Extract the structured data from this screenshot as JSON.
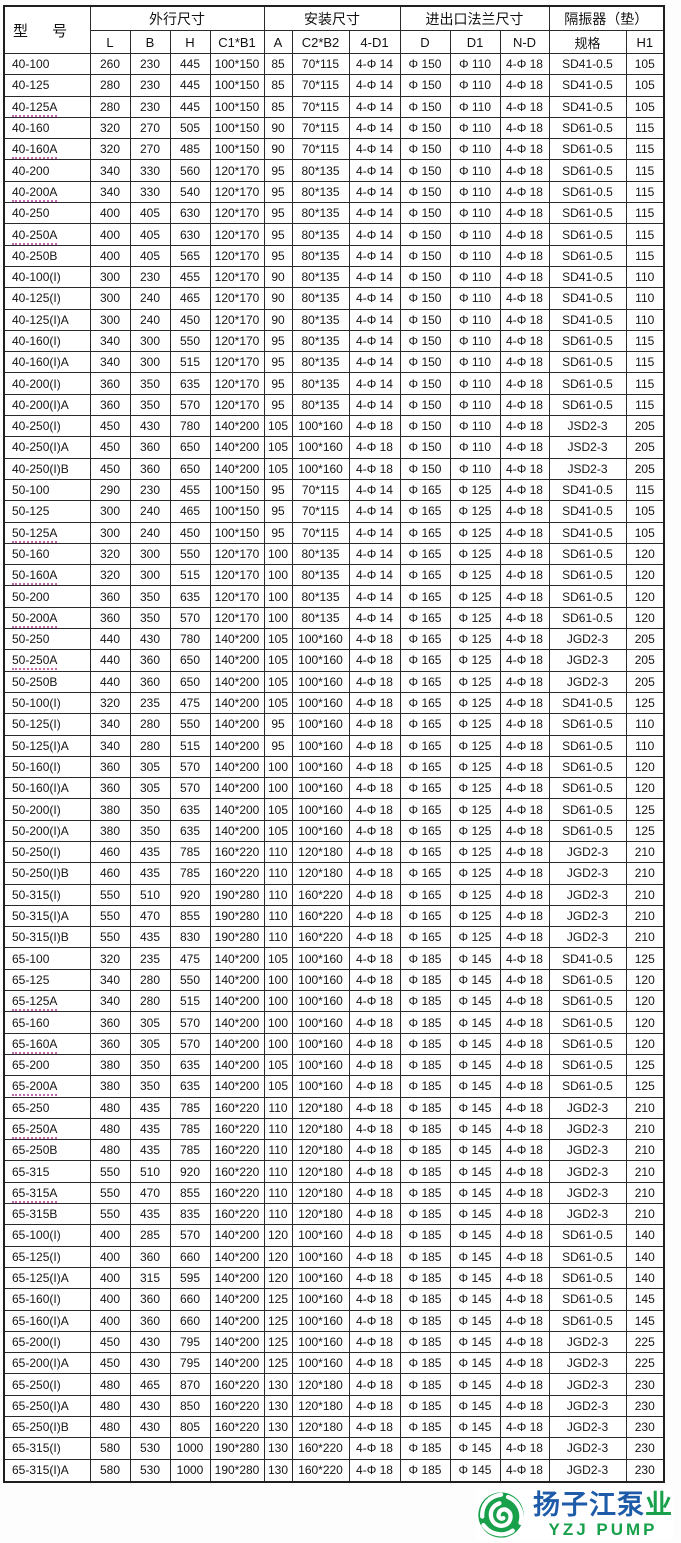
{
  "table": {
    "model_header": "型 号",
    "groups": [
      {
        "label": "外行尺寸",
        "span": 4
      },
      {
        "label": "安装尺寸",
        "span": 3
      },
      {
        "label": "进出口法兰尺寸",
        "span": 3
      },
      {
        "label": "隔振器（垫）",
        "span": 2
      }
    ],
    "sub_headers": [
      "L",
      "B",
      "H",
      "C1*B1",
      "A",
      "C2*B2",
      "4-D1",
      "D",
      "D1",
      "N-D",
      "规格",
      "H1"
    ],
    "underlined_models": [
      "40-125A",
      "40-160A",
      "40-200A",
      "40-250A",
      "50-125A",
      "50-160A",
      "50-200A",
      "50-250A",
      "65-125A",
      "65-160A",
      "65-200A",
      "65-250A",
      "65-315A"
    ],
    "rows": [
      [
        "40-100",
        "260",
        "230",
        "445",
        "100*150",
        "85",
        "70*115",
        "4-Φ 14",
        "Φ 150",
        "Φ 110",
        "4-Φ 18",
        "SD41-0.5",
        "105"
      ],
      [
        "40-125",
        "280",
        "230",
        "445",
        "100*150",
        "85",
        "70*115",
        "4-Φ 14",
        "Φ 150",
        "Φ 110",
        "4-Φ 18",
        "SD41-0.5",
        "105"
      ],
      [
        "40-125A",
        "280",
        "230",
        "445",
        "100*150",
        "85",
        "70*115",
        "4-Φ 14",
        "Φ 150",
        "Φ 110",
        "4-Φ 18",
        "SD41-0.5",
        "105"
      ],
      [
        "40-160",
        "320",
        "270",
        "505",
        "100*150",
        "90",
        "70*115",
        "4-Φ 14",
        "Φ 150",
        "Φ 110",
        "4-Φ 18",
        "SD61-0.5",
        "115"
      ],
      [
        "40-160A",
        "320",
        "270",
        "485",
        "100*150",
        "90",
        "70*115",
        "4-Φ 14",
        "Φ 150",
        "Φ 110",
        "4-Φ 18",
        "SD61-0.5",
        "115"
      ],
      [
        "40-200",
        "340",
        "330",
        "560",
        "120*170",
        "95",
        "80*135",
        "4-Φ 14",
        "Φ 150",
        "Φ 110",
        "4-Φ 18",
        "SD61-0.5",
        "115"
      ],
      [
        "40-200A",
        "340",
        "330",
        "540",
        "120*170",
        "95",
        "80*135",
        "4-Φ 14",
        "Φ 150",
        "Φ 110",
        "4-Φ 18",
        "SD61-0.5",
        "115"
      ],
      [
        "40-250",
        "400",
        "405",
        "630",
        "120*170",
        "95",
        "80*135",
        "4-Φ 14",
        "Φ 150",
        "Φ 110",
        "4-Φ 18",
        "SD61-0.5",
        "115"
      ],
      [
        "40-250A",
        "400",
        "405",
        "630",
        "120*170",
        "95",
        "80*135",
        "4-Φ 14",
        "Φ 150",
        "Φ 110",
        "4-Φ 18",
        "SD61-0.5",
        "115"
      ],
      [
        "40-250B",
        "400",
        "405",
        "565",
        "120*170",
        "95",
        "80*135",
        "4-Φ 14",
        "Φ 150",
        "Φ 110",
        "4-Φ 18",
        "SD61-0.5",
        "115"
      ],
      [
        "40-100(I)",
        "300",
        "230",
        "455",
        "120*170",
        "90",
        "80*135",
        "4-Φ 14",
        "Φ 150",
        "Φ 110",
        "4-Φ 18",
        "SD41-0.5",
        "110"
      ],
      [
        "40-125(I)",
        "300",
        "240",
        "465",
        "120*170",
        "90",
        "80*135",
        "4-Φ 14",
        "Φ 150",
        "Φ 110",
        "4-Φ 18",
        "SD41-0.5",
        "110"
      ],
      [
        "40-125(I)A",
        "300",
        "240",
        "450",
        "120*170",
        "90",
        "80*135",
        "4-Φ 14",
        "Φ 150",
        "Φ 110",
        "4-Φ 18",
        "SD41-0.5",
        "110"
      ],
      [
        "40-160(I)",
        "340",
        "300",
        "550",
        "120*170",
        "95",
        "80*135",
        "4-Φ 14",
        "Φ 150",
        "Φ 110",
        "4-Φ 18",
        "SD61-0.5",
        "115"
      ],
      [
        "40-160(I)A",
        "340",
        "300",
        "515",
        "120*170",
        "95",
        "80*135",
        "4-Φ 14",
        "Φ 150",
        "Φ 110",
        "4-Φ 18",
        "SD61-0.5",
        "115"
      ],
      [
        "40-200(I)",
        "360",
        "350",
        "635",
        "120*170",
        "95",
        "80*135",
        "4-Φ 14",
        "Φ 150",
        "Φ 110",
        "4-Φ 18",
        "SD61-0.5",
        "115"
      ],
      [
        "40-200(I)A",
        "360",
        "350",
        "570",
        "120*170",
        "95",
        "80*135",
        "4-Φ 14",
        "Φ 150",
        "Φ 110",
        "4-Φ 18",
        "SD61-0.5",
        "115"
      ],
      [
        "40-250(I)",
        "450",
        "430",
        "780",
        "140*200",
        "105",
        "100*160",
        "4-Φ 18",
        "Φ 150",
        "Φ 110",
        "4-Φ 18",
        "JSD2-3",
        "205"
      ],
      [
        "40-250(I)A",
        "450",
        "360",
        "650",
        "140*200",
        "105",
        "100*160",
        "4-Φ 18",
        "Φ 150",
        "Φ 110",
        "4-Φ 18",
        "JSD2-3",
        "205"
      ],
      [
        "40-250(I)B",
        "450",
        "360",
        "650",
        "140*200",
        "105",
        "100*160",
        "4-Φ 18",
        "Φ 150",
        "Φ 110",
        "4-Φ 18",
        "JSD2-3",
        "205"
      ],
      [
        "50-100",
        "290",
        "230",
        "455",
        "100*150",
        "95",
        "70*115",
        "4-Φ 14",
        "Φ 165",
        "Φ 125",
        "4-Φ 18",
        "SD41-0.5",
        "115"
      ],
      [
        "50-125",
        "300",
        "240",
        "465",
        "100*150",
        "95",
        "70*115",
        "4-Φ 14",
        "Φ 165",
        "Φ 125",
        "4-Φ 18",
        "SD41-0.5",
        "105"
      ],
      [
        "50-125A",
        "300",
        "240",
        "450",
        "100*150",
        "95",
        "70*115",
        "4-Φ 14",
        "Φ 165",
        "Φ 125",
        "4-Φ 18",
        "SD41-0.5",
        "105"
      ],
      [
        "50-160",
        "320",
        "300",
        "550",
        "120*170",
        "100",
        "80*135",
        "4-Φ 14",
        "Φ 165",
        "Φ 125",
        "4-Φ 18",
        "SD61-0.5",
        "120"
      ],
      [
        "50-160A",
        "320",
        "300",
        "515",
        "120*170",
        "100",
        "80*135",
        "4-Φ 14",
        "Φ 165",
        "Φ 125",
        "4-Φ 18",
        "SD61-0.5",
        "120"
      ],
      [
        "50-200",
        "360",
        "350",
        "635",
        "120*170",
        "100",
        "80*135",
        "4-Φ 14",
        "Φ 165",
        "Φ 125",
        "4-Φ 18",
        "SD61-0.5",
        "120"
      ],
      [
        "50-200A",
        "360",
        "350",
        "570",
        "120*170",
        "100",
        "80*135",
        "4-Φ 14",
        "Φ 165",
        "Φ 125",
        "4-Φ 18",
        "SD61-0.5",
        "120"
      ],
      [
        "50-250",
        "440",
        "430",
        "780",
        "140*200",
        "105",
        "100*160",
        "4-Φ 18",
        "Φ 165",
        "Φ 125",
        "4-Φ 18",
        "JGD2-3",
        "205"
      ],
      [
        "50-250A",
        "440",
        "360",
        "650",
        "140*200",
        "105",
        "100*160",
        "4-Φ 18",
        "Φ 165",
        "Φ 125",
        "4-Φ 18",
        "JGD2-3",
        "205"
      ],
      [
        "50-250B",
        "440",
        "360",
        "650",
        "140*200",
        "105",
        "100*160",
        "4-Φ 18",
        "Φ 165",
        "Φ 125",
        "4-Φ 18",
        "JGD2-3",
        "205"
      ],
      [
        "50-100(I)",
        "320",
        "235",
        "475",
        "140*200",
        "105",
        "100*160",
        "4-Φ 18",
        "Φ 165",
        "Φ 125",
        "4-Φ 18",
        "SD41-0.5",
        "125"
      ],
      [
        "50-125(I)",
        "340",
        "280",
        "550",
        "140*200",
        "95",
        "100*160",
        "4-Φ 18",
        "Φ 165",
        "Φ 125",
        "4-Φ 18",
        "SD61-0.5",
        "110"
      ],
      [
        "50-125(I)A",
        "340",
        "280",
        "515",
        "140*200",
        "95",
        "100*160",
        "4-Φ 18",
        "Φ 165",
        "Φ 125",
        "4-Φ 18",
        "SD61-0.5",
        "110"
      ],
      [
        "50-160(I)",
        "360",
        "305",
        "570",
        "140*200",
        "100",
        "100*160",
        "4-Φ 18",
        "Φ 165",
        "Φ 125",
        "4-Φ 18",
        "SD61-0.5",
        "120"
      ],
      [
        "50-160(I)A",
        "360",
        "305",
        "570",
        "140*200",
        "100",
        "100*160",
        "4-Φ 18",
        "Φ 165",
        "Φ 125",
        "4-Φ 18",
        "SD61-0.5",
        "120"
      ],
      [
        "50-200(I)",
        "380",
        "350",
        "635",
        "140*200",
        "105",
        "100*160",
        "4-Φ 18",
        "Φ 165",
        "Φ 125",
        "4-Φ 18",
        "SD61-0.5",
        "125"
      ],
      [
        "50-200(I)A",
        "380",
        "350",
        "635",
        "140*200",
        "105",
        "100*160",
        "4-Φ 18",
        "Φ 165",
        "Φ 125",
        "4-Φ 18",
        "SD61-0.5",
        "125"
      ],
      [
        "50-250(I)",
        "460",
        "435",
        "785",
        "160*220",
        "110",
        "120*180",
        "4-Φ 18",
        "Φ 165",
        "Φ 125",
        "4-Φ 18",
        "JGD2-3",
        "210"
      ],
      [
        "50-250(I)B",
        "460",
        "435",
        "785",
        "160*220",
        "110",
        "120*180",
        "4-Φ 18",
        "Φ 165",
        "Φ 125",
        "4-Φ 18",
        "JGD2-3",
        "210"
      ],
      [
        "50-315(I)",
        "550",
        "510",
        "920",
        "190*280",
        "110",
        "160*220",
        "4-Φ 18",
        "Φ 165",
        "Φ 125",
        "4-Φ 18",
        "JGD2-3",
        "210"
      ],
      [
        "50-315(I)A",
        "550",
        "470",
        "855",
        "190*280",
        "110",
        "160*220",
        "4-Φ 18",
        "Φ 165",
        "Φ 125",
        "4-Φ 18",
        "JGD2-3",
        "210"
      ],
      [
        "50-315(I)B",
        "550",
        "435",
        "830",
        "190*280",
        "110",
        "160*220",
        "4-Φ 18",
        "Φ 165",
        "Φ 125",
        "4-Φ 18",
        "JGD2-3",
        "210"
      ],
      [
        "65-100",
        "320",
        "235",
        "475",
        "140*200",
        "105",
        "100*160",
        "4-Φ 18",
        "Φ 185",
        "Φ 145",
        "4-Φ 18",
        "SD41-0.5",
        "125"
      ],
      [
        "65-125",
        "340",
        "280",
        "550",
        "140*200",
        "100",
        "100*160",
        "4-Φ 18",
        "Φ 185",
        "Φ 145",
        "4-Φ 18",
        "SD61-0.5",
        "120"
      ],
      [
        "65-125A",
        "340",
        "280",
        "515",
        "140*200",
        "100",
        "100*160",
        "4-Φ 18",
        "Φ 185",
        "Φ 145",
        "4-Φ 18",
        "SD61-0.5",
        "120"
      ],
      [
        "65-160",
        "360",
        "305",
        "570",
        "140*200",
        "100",
        "100*160",
        "4-Φ 18",
        "Φ 185",
        "Φ 145",
        "4-Φ 18",
        "SD61-0.5",
        "120"
      ],
      [
        "65-160A",
        "360",
        "305",
        "570",
        "140*200",
        "100",
        "100*160",
        "4-Φ 18",
        "Φ 185",
        "Φ 145",
        "4-Φ 18",
        "SD61-0.5",
        "120"
      ],
      [
        "65-200",
        "380",
        "350",
        "635",
        "140*200",
        "105",
        "100*160",
        "4-Φ 18",
        "Φ 185",
        "Φ 145",
        "4-Φ 18",
        "SD61-0.5",
        "125"
      ],
      [
        "65-200A",
        "380",
        "350",
        "635",
        "140*200",
        "105",
        "100*160",
        "4-Φ 18",
        "Φ 185",
        "Φ 145",
        "4-Φ 18",
        "SD61-0.5",
        "125"
      ],
      [
        "65-250",
        "480",
        "435",
        "785",
        "160*220",
        "110",
        "120*180",
        "4-Φ 18",
        "Φ 185",
        "Φ 145",
        "4-Φ 18",
        "JGD2-3",
        "210"
      ],
      [
        "65-250A",
        "480",
        "435",
        "785",
        "160*220",
        "110",
        "120*180",
        "4-Φ 18",
        "Φ 185",
        "Φ 145",
        "4-Φ 18",
        "JGD2-3",
        "210"
      ],
      [
        "65-250B",
        "480",
        "435",
        "785",
        "160*220",
        "110",
        "120*180",
        "4-Φ 18",
        "Φ 185",
        "Φ 145",
        "4-Φ 18",
        "JGD2-3",
        "210"
      ],
      [
        "65-315",
        "550",
        "510",
        "920",
        "160*220",
        "110",
        "120*180",
        "4-Φ 18",
        "Φ 185",
        "Φ 145",
        "4-Φ 18",
        "JGD2-3",
        "210"
      ],
      [
        "65-315A",
        "550",
        "470",
        "855",
        "160*220",
        "110",
        "120*180",
        "4-Φ 18",
        "Φ 185",
        "Φ 145",
        "4-Φ 18",
        "JGD2-3",
        "210"
      ],
      [
        "65-315B",
        "550",
        "435",
        "835",
        "160*220",
        "110",
        "120*180",
        "4-Φ 18",
        "Φ 185",
        "Φ 145",
        "4-Φ 18",
        "JGD2-3",
        "210"
      ],
      [
        "65-100(I)",
        "400",
        "285",
        "570",
        "140*200",
        "120",
        "100*160",
        "4-Φ 18",
        "Φ 185",
        "Φ 145",
        "4-Φ 18",
        "SD61-0.5",
        "140"
      ],
      [
        "65-125(I)",
        "400",
        "360",
        "660",
        "140*200",
        "120",
        "100*160",
        "4-Φ 18",
        "Φ 185",
        "Φ 145",
        "4-Φ 18",
        "SD61-0.5",
        "140"
      ],
      [
        "65-125(I)A",
        "400",
        "315",
        "595",
        "140*200",
        "120",
        "100*160",
        "4-Φ 18",
        "Φ 185",
        "Φ 145",
        "4-Φ 18",
        "SD61-0.5",
        "140"
      ],
      [
        "65-160(I)",
        "400",
        "360",
        "660",
        "140*200",
        "125",
        "100*160",
        "4-Φ 18",
        "Φ 185",
        "Φ 145",
        "4-Φ 18",
        "SD61-0.5",
        "145"
      ],
      [
        "65-160(I)A",
        "400",
        "360",
        "660",
        "140*200",
        "125",
        "100*160",
        "4-Φ 18",
        "Φ 185",
        "Φ 145",
        "4-Φ 18",
        "SD61-0.5",
        "145"
      ],
      [
        "65-200(I)",
        "450",
        "430",
        "795",
        "140*200",
        "125",
        "100*160",
        "4-Φ 18",
        "Φ 185",
        "Φ 145",
        "4-Φ 18",
        "JGD2-3",
        "225"
      ],
      [
        "65-200(I)A",
        "450",
        "430",
        "795",
        "140*200",
        "125",
        "100*160",
        "4-Φ 18",
        "Φ 185",
        "Φ 145",
        "4-Φ 18",
        "JGD2-3",
        "225"
      ],
      [
        "65-250(I)",
        "480",
        "465",
        "870",
        "160*220",
        "130",
        "120*180",
        "4-Φ 18",
        "Φ 185",
        "Φ 145",
        "4-Φ 18",
        "JGD2-3",
        "230"
      ],
      [
        "65-250(I)A",
        "480",
        "430",
        "850",
        "160*220",
        "130",
        "120*180",
        "4-Φ 18",
        "Φ 185",
        "Φ 145",
        "4-Φ 18",
        "JGD2-3",
        "230"
      ],
      [
        "65-250(I)B",
        "480",
        "430",
        "805",
        "160*220",
        "130",
        "120*180",
        "4-Φ 18",
        "Φ 185",
        "Φ 145",
        "4-Φ 18",
        "JGD2-3",
        "230"
      ],
      [
        "65-315(I)",
        "580",
        "530",
        "1000",
        "190*280",
        "130",
        "160*220",
        "4-Φ 18",
        "Φ 185",
        "Φ 145",
        "4-Φ 18",
        "JGD2-3",
        "230"
      ],
      [
        "65-315(I)A",
        "580",
        "530",
        "1000",
        "190*280",
        "130",
        "160*220",
        "4-Φ 18",
        "Φ 185",
        "Φ 145",
        "4-Φ 18",
        "JGD2-3",
        "230"
      ]
    ]
  },
  "logo": {
    "icon": "swirl-icon",
    "cn_blue": "扬子江泵",
    "cn_green": "业",
    "en": "YZJ PUMP",
    "blue": "#1e5ba8",
    "green": "#18a04b"
  }
}
